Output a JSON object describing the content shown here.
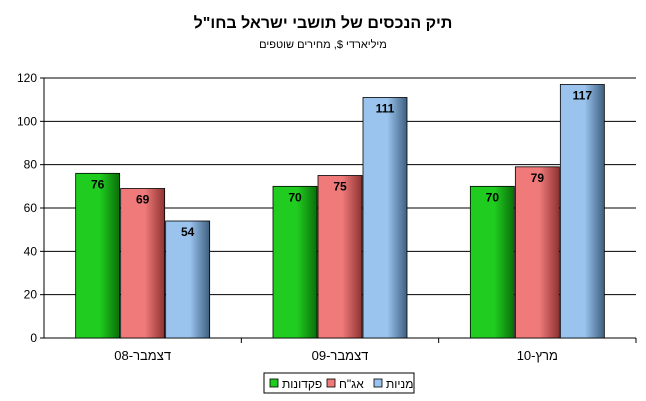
{
  "chart_data": {
    "type": "bar",
    "title": "תיק הנכסים של תושבי ישראל בחו\"ל",
    "subtitle": "מיליארדי $, מחירים שוטפים",
    "categories": [
      "דצמבר-08",
      "דצמבר-09",
      "מרץ-10"
    ],
    "series": [
      {
        "name": "פקדונות",
        "values": [
          76,
          70,
          70
        ]
      },
      {
        "name": "אג\"ח",
        "values": [
          69,
          75,
          79
        ]
      },
      {
        "name": "מניות",
        "values": [
          54,
          111,
          117
        ]
      }
    ],
    "ylim": [
      0,
      120
    ],
    "yticks": [
      0,
      20,
      40,
      60,
      80,
      100,
      120
    ],
    "grid": true,
    "legend_position": "bottom",
    "colors": {
      "series": [
        "#1fcc1f",
        "#f07a7a",
        "#9ac4ee"
      ],
      "series_dark": [
        "#0a6e0a",
        "#8e3232",
        "#3e5f80"
      ],
      "grid": "#000000",
      "axis": "#000000"
    }
  }
}
